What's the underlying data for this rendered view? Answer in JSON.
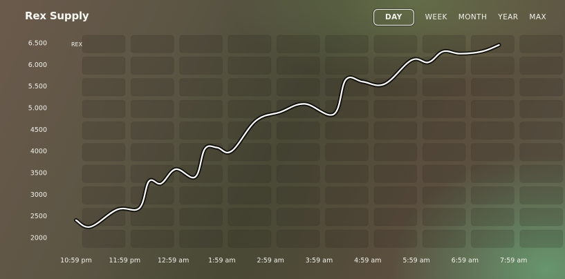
{
  "header": {
    "title": "Rex Supply",
    "ranges": [
      "DAY",
      "WEEK",
      "MONTH",
      "YEAR",
      "MAX"
    ],
    "active_range": "DAY"
  },
  "chart_data": {
    "type": "line",
    "title": "Rex Supply",
    "unit_label": "REX",
    "xlabel": "",
    "ylabel": "",
    "x_tick_labels": [
      "10:59 pm",
      "11:59 pm",
      "12:59 am",
      "1:59 am",
      "2:59 am",
      "3:59 am",
      "4:59 am",
      "5:59 am",
      "6:59 am",
      "7:59 am"
    ],
    "y_tick_labels": [
      "6.500",
      "6.000",
      "5.500",
      "5.000",
      "4500",
      "4000",
      "3500",
      "3000",
      "2500",
      "2000"
    ],
    "y_tick_values": [
      6500,
      6000,
      5500,
      5000,
      4500,
      4000,
      3500,
      3000,
      2500,
      2000
    ],
    "ylim": [
      2000,
      6500
    ],
    "grid": true,
    "legend": "none",
    "line_color": "#ffffff",
    "series": [
      {
        "x": [
          0.0,
          0.3,
          0.85,
          1.3,
          1.5,
          1.75,
          2.05,
          2.45,
          2.65,
          2.9,
          3.2,
          3.7,
          4.2,
          4.7,
          5.3,
          5.55,
          5.9,
          6.35,
          6.9,
          7.25,
          7.55,
          7.9,
          8.35,
          8.7
        ],
        "values": [
          2400,
          2250,
          2650,
          2680,
          3300,
          3250,
          3580,
          3400,
          4050,
          4080,
          4000,
          4700,
          4900,
          5090,
          4850,
          5650,
          5600,
          5550,
          6100,
          6050,
          6300,
          6250,
          6300,
          6450
        ]
      }
    ]
  }
}
